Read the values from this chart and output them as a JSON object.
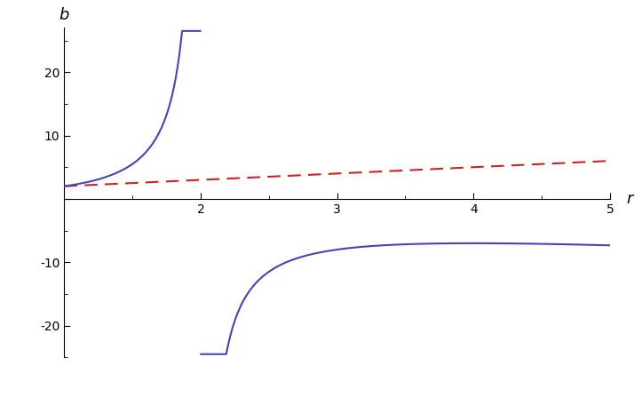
{
  "xlim": [
    1.0,
    5.0
  ],
  "ylim": [
    -25.0,
    27.0
  ],
  "yticks": [
    -20,
    -10,
    0,
    10,
    20
  ],
  "xticks": [
    2,
    3,
    4,
    5
  ],
  "xlabel": "r",
  "ylabel": "b",
  "blue_color": "#4444bb",
  "dashed_color": "#cc2222",
  "linewidth": 1.5,
  "dashed_linewidth": 1.5,
  "clip_upper": 26.5,
  "clip_lower": -24.5,
  "r_upper_min": 1.0,
  "r_upper_max": 1.9975,
  "r_lower_min": 2.0025,
  "r_lower_max": 5.0,
  "r_dashed_min": 1.0,
  "r_dashed_max": 5.0,
  "figwidth": 7.23,
  "figheight": 4.47,
  "dpi": 100
}
